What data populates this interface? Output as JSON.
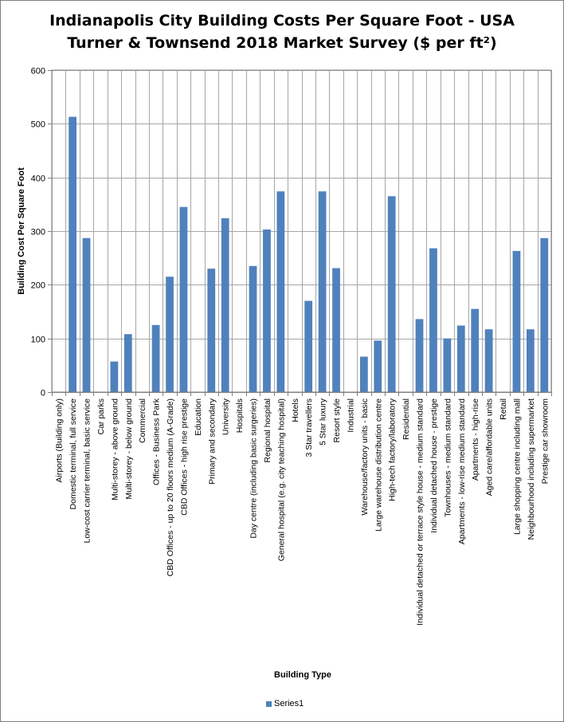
{
  "colors": {
    "bar": "#4f81bd",
    "grid": "#a6a6a6",
    "axis": "#808080"
  },
  "chart_data": {
    "type": "bar",
    "title_lines": [
      "Indianapolis City Building Costs Per Square Foot - USA",
      "Turner & Townsend 2018 Market Survey ($ per ft²)"
    ],
    "xlabel": "Building Type",
    "ylabel": "Building  Cost Per Square Foot",
    "ylim": [
      0,
      600
    ],
    "yticks": [
      0,
      100,
      200,
      300,
      400,
      500,
      600
    ],
    "grid": true,
    "legend_position": "bottom",
    "categories": [
      "Airports (Building only)",
      "Domestic terminal, full service",
      "Low-cost carrier terminal, basic service",
      "Car parks",
      "Multi-storey - above ground",
      "Multi-storey - below ground",
      "Commercial",
      "Offices - Business Park",
      "CBD Offices - up to 20 floors medium (A-Grade)",
      "CBD Offices - high rise prestige",
      "Education",
      "Primary and secondary",
      "University",
      "Hospitals",
      "Day centre (including basic surgeries)",
      "Regional hospital",
      "General hospital (e.g. city teaching hospital)",
      "Hotels",
      "3 Star travellers",
      "5 Star luxury",
      "Resort style",
      "Industrial",
      "Warehouse/factory units - basic",
      "Large warehouse distribution centre",
      "High-tech factory/laboratory",
      "Residential",
      "Individual detached or terrace style house - medium standard",
      "Individual detached house - prestige",
      "Townhouses - medium standard",
      "Apartments - low-rise medium standard",
      "Apartments - high-rise",
      "Aged care/affordable units",
      "Retail",
      "Large shopping centre including mall",
      "Neighbourhood including supermarket",
      "Prestige car showroom"
    ],
    "series": [
      {
        "name": "Series1",
        "values": [
          null,
          513,
          287,
          null,
          57,
          108,
          null,
          125,
          215,
          345,
          null,
          230,
          324,
          null,
          235,
          303,
          374,
          null,
          170,
          374,
          231,
          null,
          66,
          96,
          365,
          null,
          136,
          268,
          100,
          124,
          155,
          117,
          null,
          263,
          117,
          287
        ]
      }
    ]
  }
}
